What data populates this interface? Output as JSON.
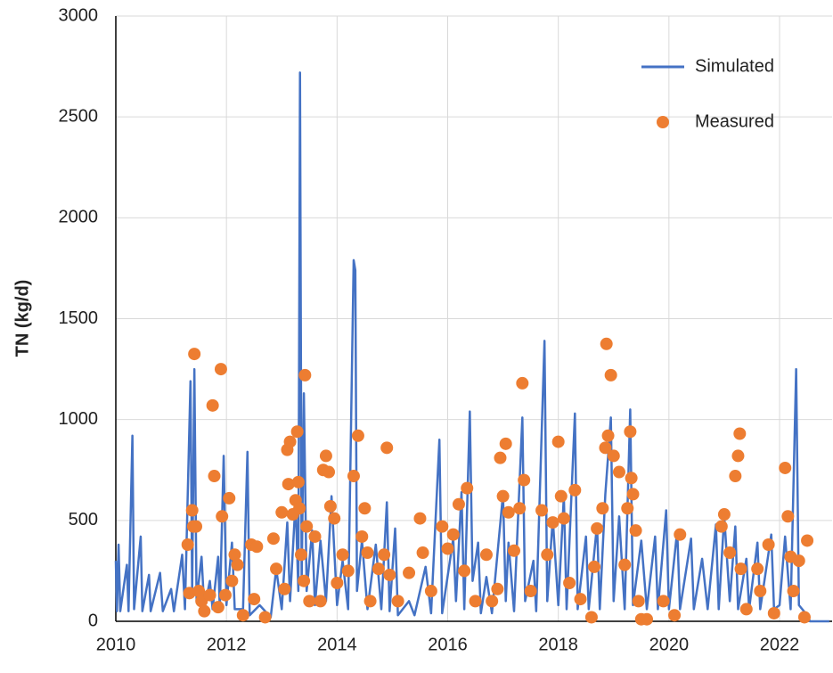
{
  "chart_data": {
    "type": "line",
    "y_label": "TN (kg/d)",
    "xlim": [
      2010,
      2022.95
    ],
    "xticks": [
      2010,
      2012,
      2014,
      2016,
      2018,
      2020,
      2022
    ],
    "ylim": [
      0,
      3000
    ],
    "yticks": [
      0,
      500,
      1000,
      1500,
      2000,
      2500,
      3000
    ],
    "grid": true,
    "legend": "upper right",
    "series": [
      {
        "name": "Simulated",
        "type": "line",
        "color": "#4472c4",
        "x": [
          2010.0,
          2010.02,
          2010.05,
          2010.08,
          2010.2,
          2010.23,
          2010.3,
          2010.33,
          2010.45,
          2010.48,
          2010.6,
          2010.63,
          2010.8,
          2010.85,
          2011.0,
          2011.05,
          2011.2,
          2011.25,
          2011.35,
          2011.38,
          2011.42,
          2011.46,
          2011.55,
          2011.6,
          2011.7,
          2011.75,
          2011.85,
          2011.88,
          2011.95,
          2012.0,
          2012.1,
          2012.15,
          2012.3,
          2012.38,
          2012.42,
          2012.6,
          2012.8,
          2012.9,
          2013.0,
          2013.1,
          2013.15,
          2013.25,
          2013.3,
          2013.33,
          2013.36,
          2013.4,
          2013.45,
          2013.55,
          2013.6,
          2013.7,
          2013.8,
          2013.9,
          2014.0,
          2014.1,
          2014.2,
          2014.3,
          2014.33,
          2014.36,
          2014.45,
          2014.55,
          2014.7,
          2014.8,
          2014.9,
          2014.95,
          2015.05,
          2015.1,
          2015.3,
          2015.4,
          2015.6,
          2015.7,
          2015.85,
          2015.9,
          2016.1,
          2016.15,
          2016.25,
          2016.3,
          2016.4,
          2016.45,
          2016.55,
          2016.6,
          2016.7,
          2016.8,
          2017.0,
          2017.05,
          2017.1,
          2017.2,
          2017.35,
          2017.4,
          2017.55,
          2017.6,
          2017.75,
          2017.8,
          2017.9,
          2018.0,
          2018.1,
          2018.15,
          2018.3,
          2018.35,
          2018.5,
          2018.55,
          2018.7,
          2018.75,
          2018.85,
          2018.95,
          2019.0,
          2019.1,
          2019.2,
          2019.3,
          2019.35,
          2019.5,
          2019.6,
          2019.75,
          2019.8,
          2019.95,
          2020.0,
          2020.15,
          2020.2,
          2020.4,
          2020.45,
          2020.6,
          2020.7,
          2020.85,
          2020.9,
          2021.0,
          2021.1,
          2021.2,
          2021.25,
          2021.4,
          2021.45,
          2021.6,
          2021.65,
          2021.85,
          2021.9,
          2022.0,
          2022.1,
          2022.2,
          2022.3,
          2022.35,
          2022.5,
          2022.55,
          2022.9
        ],
        "values": [
          300,
          50,
          380,
          50,
          280,
          50,
          920,
          60,
          420,
          50,
          230,
          50,
          240,
          50,
          160,
          50,
          330,
          60,
          1190,
          150,
          1250,
          100,
          320,
          60,
          200,
          60,
          320,
          60,
          820,
          80,
          390,
          60,
          60,
          840,
          30,
          80,
          20,
          260,
          60,
          490,
          100,
          600,
          150,
          2720,
          200,
          1130,
          150,
          450,
          80,
          400,
          100,
          620,
          80,
          300,
          60,
          1790,
          1740,
          150,
          400,
          60,
          380,
          60,
          590,
          50,
          460,
          30,
          100,
          30,
          270,
          40,
          900,
          40,
          410,
          100,
          640,
          60,
          1040,
          200,
          390,
          40,
          220,
          40,
          630,
          100,
          390,
          50,
          1010,
          100,
          300,
          50,
          1390,
          100,
          510,
          80,
          620,
          60,
          1030,
          60,
          420,
          60,
          480,
          60,
          630,
          1010,
          100,
          520,
          60,
          1050,
          80,
          400,
          60,
          420,
          60,
          550,
          60,
          450,
          60,
          410,
          60,
          310,
          60,
          480,
          60,
          520,
          100,
          470,
          60,
          310,
          60,
          390,
          60,
          430,
          60,
          80,
          420,
          60,
          1250,
          80,
          30,
          0,
          0
        ]
      },
      {
        "name": "Measured",
        "type": "scatter",
        "color": "#ed7d31",
        "x": [
          2011.3,
          2011.33,
          2011.38,
          2011.4,
          2011.42,
          2011.45,
          2011.5,
          2011.55,
          2011.6,
          2011.7,
          2011.75,
          2011.78,
          2011.85,
          2011.9,
          2011.92,
          2011.98,
          2012.05,
          2012.1,
          2012.15,
          2012.2,
          2012.3,
          2012.45,
          2012.5,
          2012.55,
          2012.7,
          2012.85,
          2012.9,
          2013.0,
          2013.05,
          2013.1,
          2013.12,
          2013.15,
          2013.2,
          2013.25,
          2013.28,
          2013.3,
          2013.32,
          2013.35,
          2013.4,
          2013.42,
          2013.45,
          2013.5,
          2013.6,
          2013.7,
          2013.75,
          2013.8,
          2013.85,
          2013.88,
          2013.95,
          2014.0,
          2014.1,
          2014.2,
          2014.3,
          2014.38,
          2014.45,
          2014.5,
          2014.55,
          2014.6,
          2014.75,
          2014.85,
          2014.9,
          2014.95,
          2015.1,
          2015.3,
          2015.5,
          2015.55,
          2015.7,
          2015.9,
          2016.0,
          2016.1,
          2016.2,
          2016.3,
          2016.35,
          2016.5,
          2016.7,
          2016.8,
          2016.9,
          2016.95,
          2017.0,
          2017.05,
          2017.1,
          2017.2,
          2017.3,
          2017.35,
          2017.38,
          2017.5,
          2017.7,
          2017.8,
          2017.9,
          2018.0,
          2018.05,
          2018.1,
          2018.2,
          2018.3,
          2018.4,
          2018.6,
          2018.65,
          2018.7,
          2018.8,
          2018.85,
          2018.87,
          2018.9,
          2018.95,
          2019.0,
          2019.1,
          2019.2,
          2019.25,
          2019.3,
          2019.32,
          2019.35,
          2019.4,
          2019.45,
          2019.5,
          2019.6,
          2019.9,
          2020.1,
          2020.2,
          2020.95,
          2021.0,
          2021.1,
          2021.2,
          2021.25,
          2021.28,
          2021.3,
          2021.4,
          2021.6,
          2021.65,
          2021.8,
          2021.9,
          2022.1,
          2022.15,
          2022.2,
          2022.25,
          2022.35,
          2022.45,
          2022.5
        ],
        "values": [
          380,
          140,
          550,
          470,
          1325,
          470,
          150,
          100,
          50,
          130,
          1070,
          720,
          70,
          1250,
          520,
          130,
          610,
          200,
          330,
          280,
          30,
          380,
          110,
          370,
          20,
          410,
          260,
          540,
          160,
          850,
          680,
          890,
          530,
          600,
          940,
          690,
          560,
          330,
          200,
          1220,
          470,
          100,
          420,
          100,
          750,
          820,
          740,
          570,
          510,
          190,
          330,
          250,
          720,
          920,
          420,
          560,
          340,
          100,
          260,
          330,
          860,
          230,
          100,
          240,
          510,
          340,
          150,
          470,
          360,
          430,
          580,
          250,
          660,
          100,
          330,
          100,
          160,
          810,
          620,
          880,
          540,
          350,
          560,
          1180,
          700,
          150,
          550,
          330,
          490,
          890,
          620,
          510,
          190,
          650,
          110,
          20,
          270,
          460,
          560,
          860,
          1375,
          920,
          1220,
          820,
          740,
          280,
          560,
          940,
          710,
          630,
          450,
          100,
          10,
          10,
          100,
          30,
          430,
          470,
          530,
          340,
          720,
          820,
          930,
          260,
          60,
          260,
          150,
          380,
          40,
          760,
          520,
          320,
          150,
          300,
          20,
          400
        ]
      }
    ]
  }
}
